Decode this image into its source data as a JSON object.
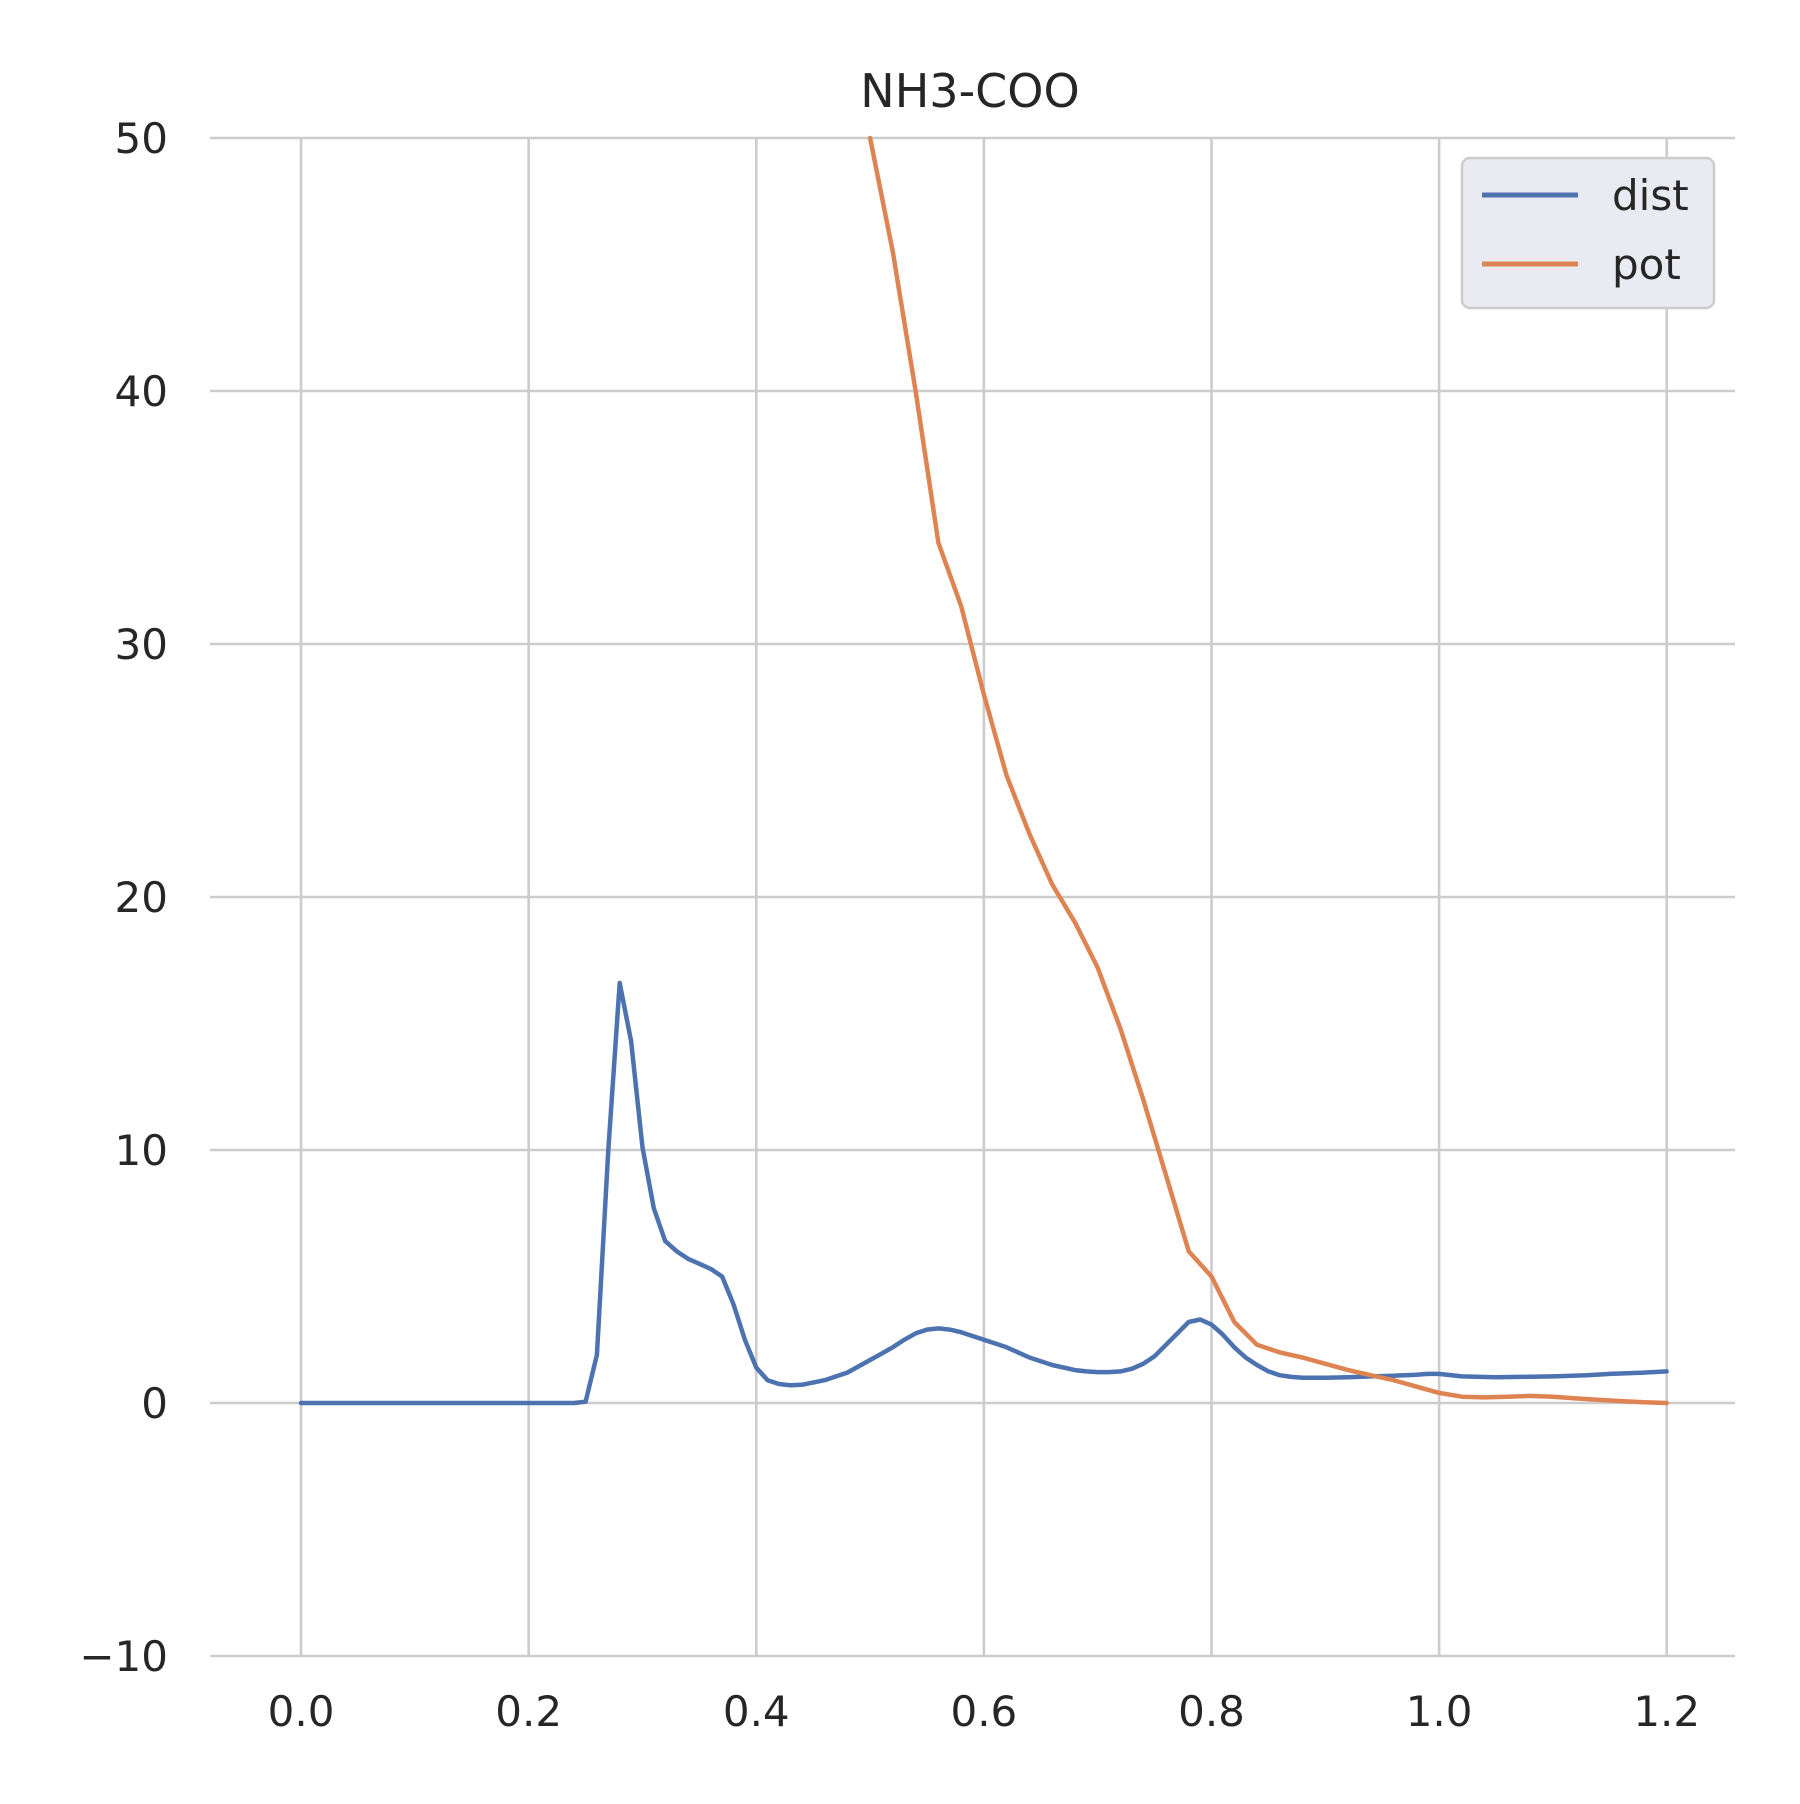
{
  "chart_data": {
    "type": "line",
    "title": "NH3-COO",
    "xlabel": "",
    "ylabel": "",
    "xlim": [
      -0.08,
      1.26
    ],
    "ylim": [
      -10,
      50
    ],
    "x_ticks": [
      0.0,
      0.2,
      0.4,
      0.6,
      0.8,
      1.0,
      1.2
    ],
    "x_tick_labels": [
      "0.0",
      "0.2",
      "0.4",
      "0.6",
      "0.8",
      "1.0",
      "1.2"
    ],
    "y_ticks": [
      -10,
      0,
      10,
      20,
      30,
      40,
      50
    ],
    "y_tick_labels": [
      "−10",
      "0",
      "10",
      "20",
      "30",
      "40",
      "50"
    ],
    "grid": true,
    "legend_position": "top-right",
    "series": [
      {
        "name": "dist",
        "color": "#4c72b0",
        "x": [
          0.0,
          0.05,
          0.1,
          0.15,
          0.2,
          0.24,
          0.25,
          0.26,
          0.27,
          0.28,
          0.29,
          0.3,
          0.31,
          0.32,
          0.33,
          0.34,
          0.35,
          0.36,
          0.37,
          0.38,
          0.39,
          0.4,
          0.41,
          0.42,
          0.43,
          0.44,
          0.46,
          0.48,
          0.5,
          0.51,
          0.52,
          0.53,
          0.54,
          0.55,
          0.56,
          0.57,
          0.58,
          0.6,
          0.62,
          0.64,
          0.66,
          0.68,
          0.69,
          0.7,
          0.71,
          0.72,
          0.73,
          0.74,
          0.75,
          0.76,
          0.77,
          0.78,
          0.79,
          0.8,
          0.81,
          0.82,
          0.83,
          0.84,
          0.85,
          0.86,
          0.87,
          0.88,
          0.9,
          0.92,
          0.94,
          0.96,
          0.97,
          0.98,
          0.99,
          1.0,
          1.02,
          1.05,
          1.07,
          1.1,
          1.13,
          1.15,
          1.18,
          1.2
        ],
        "values": [
          0,
          0,
          0,
          0,
          0,
          0,
          0.05,
          1.9,
          10.0,
          16.6,
          14.3,
          10.1,
          7.7,
          6.4,
          6.0,
          5.7,
          5.5,
          5.3,
          5.0,
          3.9,
          2.5,
          1.4,
          0.9,
          0.75,
          0.7,
          0.72,
          0.9,
          1.2,
          1.7,
          1.95,
          2.2,
          2.5,
          2.75,
          2.9,
          2.95,
          2.9,
          2.8,
          2.5,
          2.2,
          1.8,
          1.5,
          1.3,
          1.25,
          1.22,
          1.22,
          1.25,
          1.35,
          1.55,
          1.85,
          2.3,
          2.75,
          3.2,
          3.3,
          3.1,
          2.7,
          2.2,
          1.8,
          1.5,
          1.25,
          1.1,
          1.03,
          1.0,
          1.0,
          1.02,
          1.05,
          1.08,
          1.1,
          1.12,
          1.15,
          1.15,
          1.05,
          1.02,
          1.03,
          1.05,
          1.1,
          1.15,
          1.2,
          1.25
        ]
      },
      {
        "name": "pot",
        "color": "#dd8452",
        "x": [
          0.5,
          0.52,
          0.54,
          0.56,
          0.58,
          0.6,
          0.62,
          0.64,
          0.66,
          0.68,
          0.7,
          0.72,
          0.74,
          0.76,
          0.78,
          0.8,
          0.82,
          0.84,
          0.86,
          0.88,
          0.9,
          0.92,
          0.94,
          0.96,
          0.98,
          1.0,
          1.02,
          1.04,
          1.06,
          1.08,
          1.1,
          1.12,
          1.15,
          1.18,
          1.2
        ],
        "values": [
          50.0,
          45.5,
          40.0,
          34.0,
          31.5,
          28.0,
          24.8,
          22.5,
          20.5,
          19.0,
          17.2,
          14.8,
          12.0,
          9.0,
          6.0,
          5.0,
          3.2,
          2.3,
          2.0,
          1.8,
          1.55,
          1.3,
          1.1,
          0.9,
          0.65,
          0.4,
          0.25,
          0.22,
          0.25,
          0.28,
          0.25,
          0.18,
          0.1,
          0.03,
          0.0
        ]
      }
    ]
  }
}
